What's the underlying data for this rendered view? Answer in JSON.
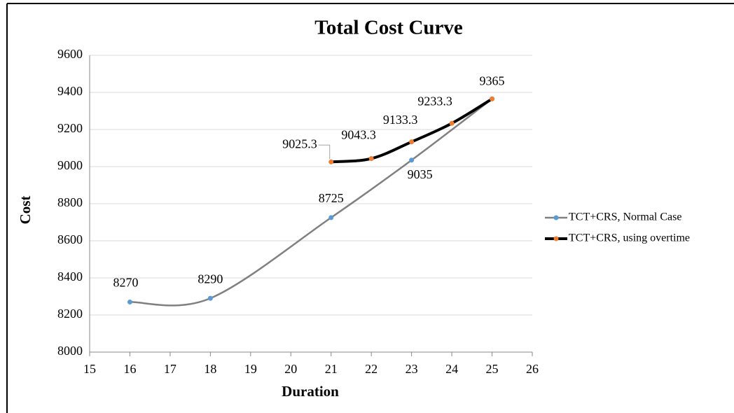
{
  "chart_data": {
    "type": "line",
    "title": "Total Cost Curve",
    "x_label": "Duration",
    "y_label": "Cost",
    "xlim": [
      15,
      26
    ],
    "xticks": [
      15,
      16,
      17,
      18,
      19,
      20,
      21,
      22,
      23,
      24,
      25,
      26
    ],
    "ylim": [
      8000,
      9600
    ],
    "yticks": [
      8000,
      8200,
      8400,
      8600,
      8800,
      9000,
      9200,
      9400,
      9600
    ],
    "grid": true,
    "smooth": true,
    "legend": "right",
    "series": [
      {
        "name": "TCT+CRS, Normal Case",
        "color": "#808080",
        "marker_color": "#5b9bd5",
        "x": [
          16,
          18,
          21,
          23,
          25
        ],
        "values": [
          8270,
          8290,
          8725,
          9035,
          9365
        ],
        "value_labels": [
          "8270",
          "8290",
          "8725",
          "9035",
          null
        ]
      },
      {
        "name": "TCT+CRS, using overtime",
        "color": "#000000",
        "marker_color": "#ed7d31",
        "x": [
          21,
          22,
          23,
          24,
          25
        ],
        "values": [
          9025.3,
          9043.3,
          9133.3,
          9233.3,
          9365
        ],
        "value_labels": [
          "9025.3",
          "9043.3",
          "9133.3",
          "9233.3",
          "9365"
        ]
      }
    ]
  }
}
